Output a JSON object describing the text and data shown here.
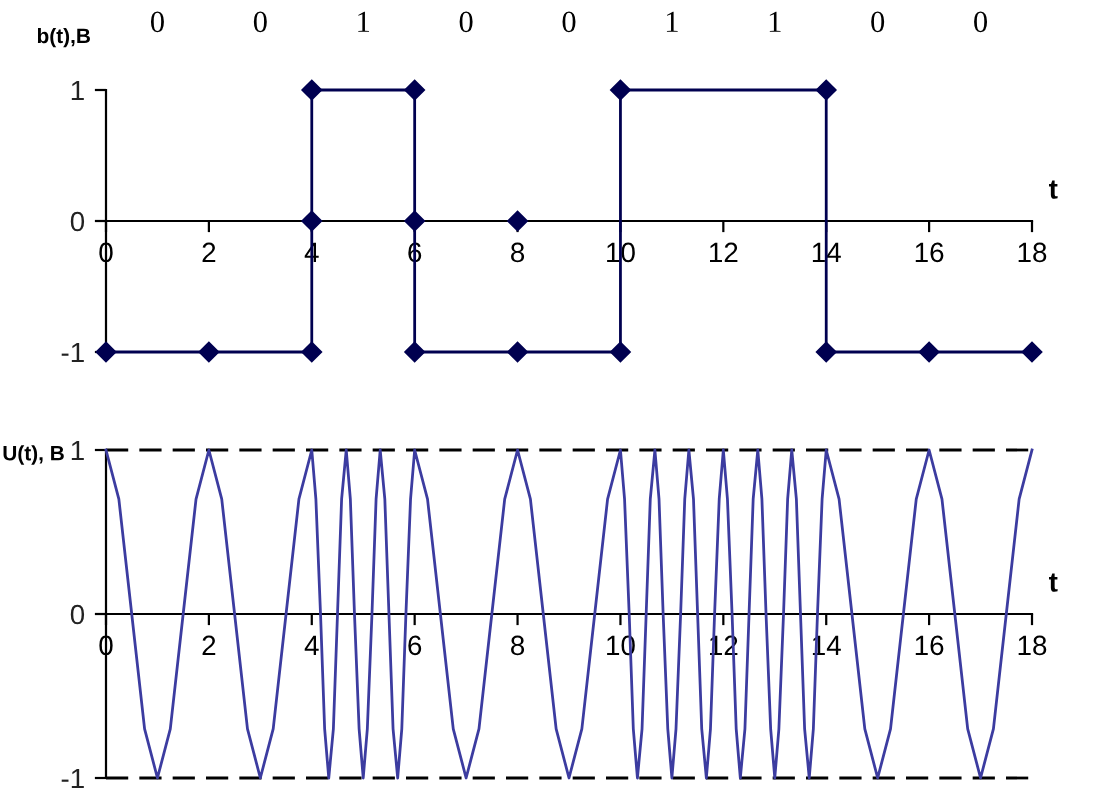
{
  "chart_data": [
    {
      "type": "line",
      "ylabel": "b(t),B",
      "xlabel": "t",
      "annotations": [
        "0",
        "0",
        "1",
        "0",
        "0",
        "1",
        "1",
        "0",
        "0"
      ],
      "series": [
        {
          "color": "#000050",
          "x": [
            0,
            2,
            4,
            4,
            4,
            6,
            6,
            6,
            8,
            10,
            10,
            14,
            14,
            16,
            18
          ],
          "values": [
            -1,
            -1,
            -1,
            0,
            1,
            1,
            0,
            -1,
            -1,
            -1,
            1,
            1,
            -1,
            -1,
            -1
          ]
        },
        {
          "type": "scatter",
          "color": "#000050",
          "x": [
            8
          ],
          "values": [
            0
          ]
        }
      ],
      "xlim": [
        0,
        18
      ],
      "xticks": [
        0,
        2,
        4,
        6,
        8,
        10,
        12,
        14,
        16,
        18
      ],
      "ylim": [
        -1,
        1
      ],
      "yticks": [
        -1,
        0,
        1
      ],
      "marker": "diamond"
    },
    {
      "type": "line",
      "ylabel": "U(t), B",
      "xlabel": "t",
      "series": [
        {
          "color": "#3c3ca0",
          "x": [
            0,
            0.25,
            0.5,
            0.75,
            1,
            1.25,
            1.5,
            1.75,
            2,
            2.25,
            2.5,
            2.75,
            3,
            3.25,
            3.5,
            3.75,
            4,
            4.08,
            4.17,
            4.25,
            4.33,
            4.42,
            4.5,
            4.58,
            4.67,
            4.75,
            4.83,
            4.92,
            5,
            5.08,
            5.17,
            5.25,
            5.33,
            5.42,
            5.5,
            5.58,
            5.67,
            5.75,
            5.83,
            5.92,
            6,
            6.25,
            6.5,
            6.75,
            7,
            7.25,
            7.5,
            7.75,
            8,
            8.25,
            8.5,
            8.75,
            9,
            9.25,
            9.5,
            9.75,
            10,
            10.08,
            10.17,
            10.25,
            10.33,
            10.42,
            10.5,
            10.58,
            10.67,
            10.75,
            10.83,
            10.92,
            11,
            11.08,
            11.17,
            11.25,
            11.33,
            11.42,
            11.5,
            11.58,
            11.67,
            11.75,
            11.83,
            11.92,
            12,
            12.08,
            12.17,
            12.25,
            12.33,
            12.42,
            12.5,
            12.58,
            12.67,
            12.75,
            12.83,
            12.92,
            13,
            13.08,
            13.17,
            13.25,
            13.33,
            13.42,
            13.5,
            13.58,
            13.67,
            13.75,
            13.83,
            13.92,
            14,
            14.25,
            14.5,
            14.75,
            15,
            15.25,
            15.5,
            15.75,
            16,
            16.25,
            16.5,
            16.75,
            17,
            17.25,
            17.5,
            17.75,
            18
          ],
          "values": [
            1,
            0.7,
            0,
            -0.7,
            -1,
            -0.7,
            0,
            0.7,
            1,
            0.7,
            0,
            -0.7,
            -1,
            -0.7,
            0,
            0.7,
            1,
            0.7,
            0,
            -0.7,
            -1,
            -0.7,
            0,
            0.7,
            1,
            0.7,
            0,
            -0.7,
            -1,
            -0.7,
            0,
            0.7,
            1,
            0.7,
            0,
            -0.7,
            -1,
            -0.7,
            0,
            0.7,
            1,
            0.7,
            0,
            -0.7,
            -1,
            -0.7,
            0,
            0.7,
            1,
            0.7,
            0,
            -0.7,
            -1,
            -0.7,
            0,
            0.7,
            1,
            0.7,
            0,
            -0.7,
            -1,
            -0.7,
            0,
            0.7,
            1,
            0.7,
            0,
            -0.7,
            -1,
            -0.7,
            0,
            0.7,
            1,
            0.7,
            0,
            -0.7,
            -1,
            -0.7,
            0,
            0.7,
            1,
            0.7,
            0,
            -0.7,
            -1,
            -0.7,
            0,
            0.7,
            1,
            0.7,
            0,
            -0.7,
            -1,
            -0.7,
            0,
            0.7,
            1,
            0.7,
            0,
            -0.7,
            -1,
            -0.7,
            0,
            0.7,
            1,
            0.7,
            0,
            -0.7,
            -1,
            -0.7,
            0,
            0.7,
            1,
            0.7,
            0,
            -0.7,
            -1,
            -0.7,
            0,
            0.7,
            1
          ]
        }
      ],
      "ref_lines": [
        {
          "axis": "y",
          "value": 1,
          "color": "#000000",
          "line_style": "dashed"
        },
        {
          "axis": "y",
          "value": -1,
          "color": "#000000",
          "line_style": "dashed"
        }
      ],
      "xlim": [
        0,
        18
      ],
      "xticks": [
        0,
        2,
        4,
        6,
        8,
        10,
        12,
        14,
        16,
        18
      ],
      "ylim": [
        -1,
        1
      ],
      "yticks": [
        -1,
        0,
        1
      ]
    }
  ]
}
